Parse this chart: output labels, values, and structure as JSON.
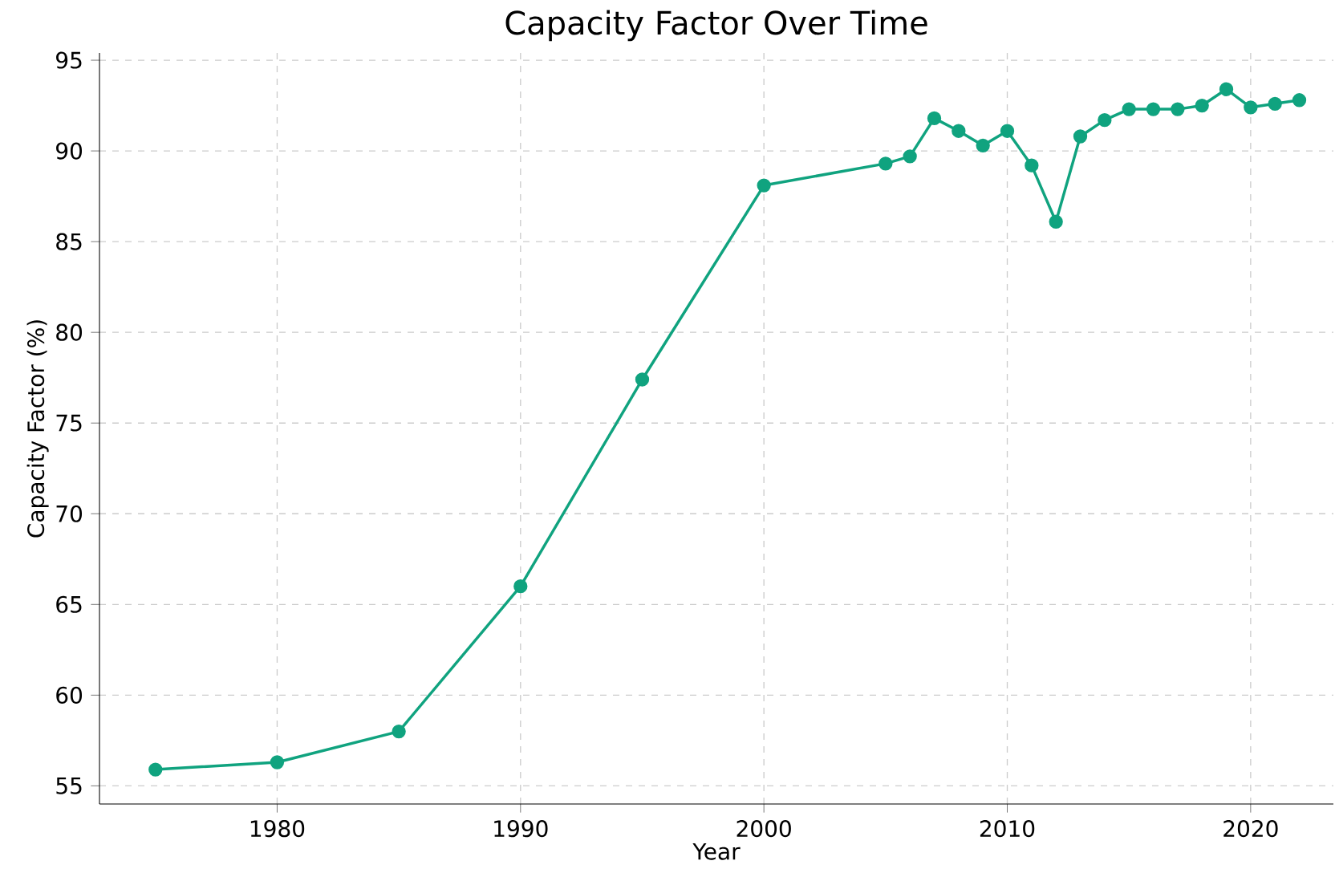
{
  "chart_data": {
    "type": "line",
    "title": "Capacity Factor Over Time",
    "xlabel": "Year",
    "ylabel": "Capacity Factor (%)",
    "x": [
      1975,
      1980,
      1985,
      1990,
      1995,
      2000,
      2005,
      2006,
      2007,
      2008,
      2009,
      2010,
      2011,
      2012,
      2013,
      2014,
      2015,
      2016,
      2017,
      2018,
      2019,
      2020,
      2021,
      2022
    ],
    "series": [
      {
        "color": "#10a37f",
        "values": [
          55.9,
          56.3,
          58.0,
          66.0,
          77.4,
          88.1,
          89.3,
          89.7,
          91.8,
          91.1,
          90.3,
          91.1,
          89.2,
          86.1,
          90.8,
          91.7,
          92.3,
          92.3,
          92.3,
          92.5,
          93.4,
          92.4,
          92.6,
          92.8
        ]
      }
    ],
    "xlim": [
      1972.7,
      2023.4
    ],
    "ylim": [
      54.0,
      95.4
    ],
    "xticks": [
      1980,
      1990,
      2000,
      2010,
      2020
    ],
    "yticks": [
      55,
      60,
      65,
      70,
      75,
      80,
      85,
      90,
      95
    ],
    "grid": true,
    "marker": "circle",
    "line_style": "solid"
  }
}
